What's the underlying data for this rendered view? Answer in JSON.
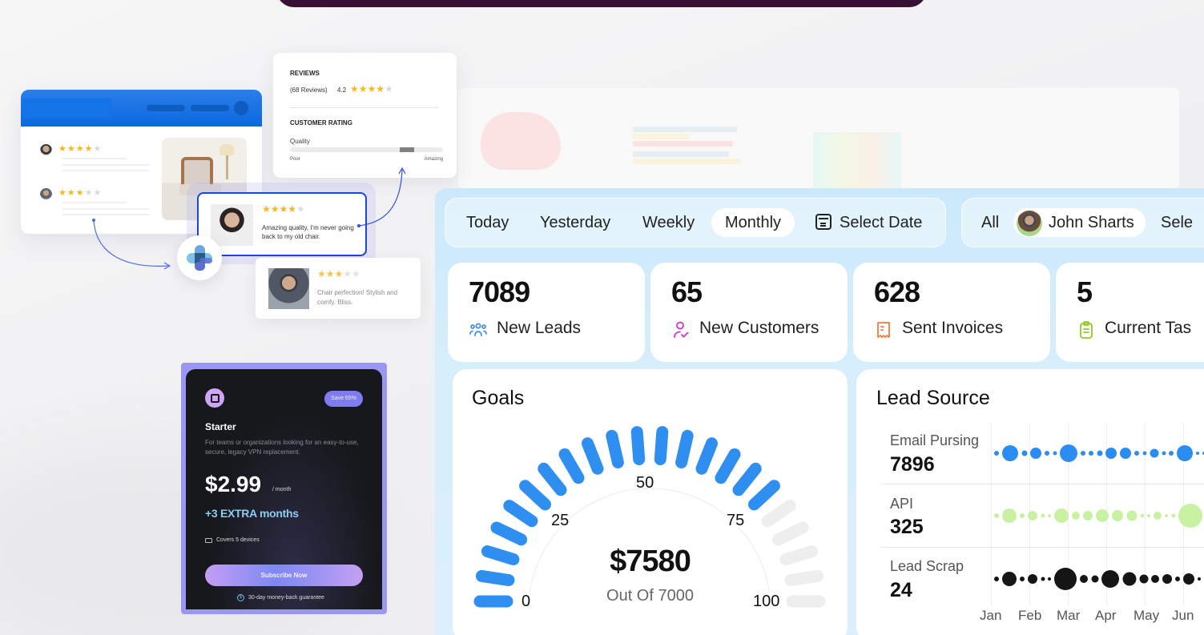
{
  "reviews_widget": {
    "title": "REVIEWS",
    "count_label": "(68 Reviews)",
    "score": "4.2",
    "stars_filled": 4,
    "customer_rating_title": "CUSTOMER RATING",
    "quality_label": "Quality",
    "scale_low": "Poor",
    "scale_high": "Amazing"
  },
  "mini_reviews": [
    {
      "stars": "★★★★",
      "stars_off": "★"
    },
    {
      "stars": "★★★",
      "stars_off": "★★"
    }
  ],
  "highlight_review": {
    "stars": "★★★★",
    "stars_off": "★",
    "text": "Amazing quality, I'm never going back to my old chair."
  },
  "second_review": {
    "stars": "★★★",
    "stars_off": "★★",
    "text": "Chair perfection! Stylish and comfy. Bliss."
  },
  "pricing": {
    "badge": "Save 65%",
    "plan": "Starter",
    "description": "For teams or organizations looking for an easy-to-use, secure, legacy VPN replacement.",
    "price": "$2.99",
    "period": "/ month",
    "extra": "+3 EXTRA months",
    "devices": "Covers 5 devices",
    "cta": "Subscribe Now",
    "guarantee": "30-day money-back guarantee",
    "guarantee_icon": "$"
  },
  "dashboard": {
    "time_filters": [
      "Today",
      "Yesterday",
      "Weekly",
      "Monthly"
    ],
    "active_time_filter": "Monthly",
    "select_date": "Select Date",
    "user_filters": {
      "all": "All",
      "user": "John Sharts",
      "select": "Sele"
    },
    "stats": [
      {
        "value": "7089",
        "label": "New Leads",
        "icon": "users-icon",
        "color": "#3f8ff0"
      },
      {
        "value": "65",
        "label": "New Customers",
        "icon": "user-check-icon",
        "color": "#d62fd0"
      },
      {
        "value": "628",
        "label": "Sent Invoices",
        "icon": "receipt-icon",
        "color": "#f07b3c"
      },
      {
        "value": "5",
        "label": "Current Tas",
        "icon": "clipboard-icon",
        "color": "#8ccc2c"
      }
    ],
    "goals": {
      "title": "Goals",
      "value": "$7580",
      "subtitle": "Out Of 7000",
      "ticks": [
        "0",
        "25",
        "50",
        "75",
        "100"
      ],
      "segments_total": 22,
      "segments_filled": 17,
      "fill_color": "#2f8ff0",
      "empty_color": "#eeeeee"
    },
    "lead_source": {
      "title": "Lead Source",
      "rows": [
        {
          "label": "Email Pursing",
          "value": "7896",
          "color": "#2b8cf2"
        },
        {
          "label": "API",
          "value": "325",
          "color": "#c8f2a2"
        },
        {
          "label": "Lead Scrap",
          "value": "24",
          "color": "#151515"
        }
      ],
      "months": [
        "Jan",
        "Feb",
        "Mar",
        "Apr",
        "May",
        "Jun"
      ]
    }
  },
  "chart_data": {
    "type": "scatter",
    "title": "Lead Source",
    "categories": [
      "Jan",
      "Feb",
      "Mar",
      "Apr",
      "May",
      "Jun"
    ],
    "series": [
      {
        "name": "Email Pursing",
        "total": 7896,
        "dot_sizes": [
          6,
          20,
          7,
          14,
          6,
          5,
          22,
          6,
          6,
          7,
          14,
          14,
          6,
          5,
          11,
          5,
          6,
          20,
          4,
          4,
          4
        ]
      },
      {
        "name": "API",
        "total": 325,
        "dot_sizes": [
          6,
          18,
          6,
          12,
          5,
          4,
          18,
          10,
          12,
          16,
          14,
          13,
          5,
          4,
          10,
          4,
          5,
          30,
          4,
          4
        ]
      },
      {
        "name": "Lead Scrap",
        "total": 24,
        "dot_sizes": [
          6,
          18,
          6,
          12,
          5,
          4,
          28,
          10,
          9,
          22,
          17,
          11,
          10,
          12,
          6,
          14,
          4
        ]
      }
    ],
    "xlabel": "",
    "ylabel": "",
    "grid": true
  }
}
